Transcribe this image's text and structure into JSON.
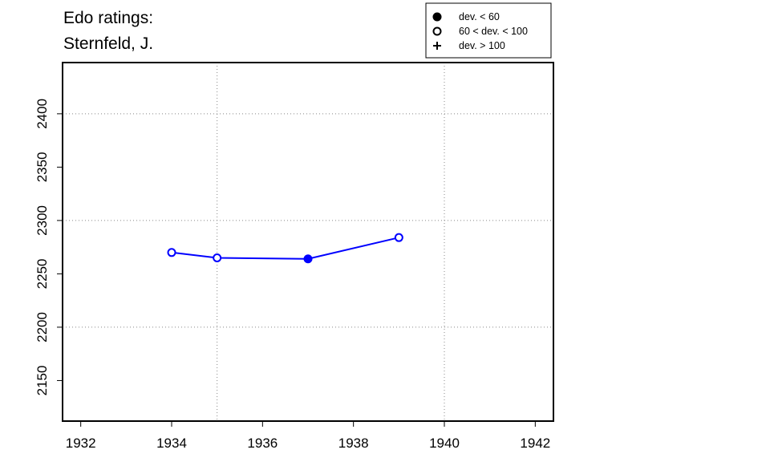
{
  "chart_data": {
    "type": "line",
    "title": "Edo ratings:",
    "subtitle": "Sternfeld, J.",
    "x": [
      1934,
      1935,
      1937,
      1939
    ],
    "series": [
      {
        "color": "#0000ff",
        "values": [
          2270,
          2265,
          2264,
          2284
        ],
        "markers": [
          "open",
          "open",
          "filled",
          "open"
        ]
      }
    ],
    "xlim": [
      1931.6,
      1942.4
    ],
    "xticks": [
      1932,
      1934,
      1936,
      1938,
      1940,
      1942
    ],
    "ylim": [
      2112,
      2448
    ],
    "yticks": [
      2150,
      2200,
      2250,
      2300,
      2350,
      2400
    ],
    "grid_x": [
      1935,
      1940
    ],
    "grid_y": [
      2200,
      2300,
      2400
    ],
    "legend": [
      {
        "label": "dev. < 60",
        "marker": "filled"
      },
      {
        "label": "60 < dev. < 100",
        "marker": "open"
      },
      {
        "label": "dev. > 100",
        "marker": "plus"
      }
    ],
    "legend_position": "top-right"
  }
}
